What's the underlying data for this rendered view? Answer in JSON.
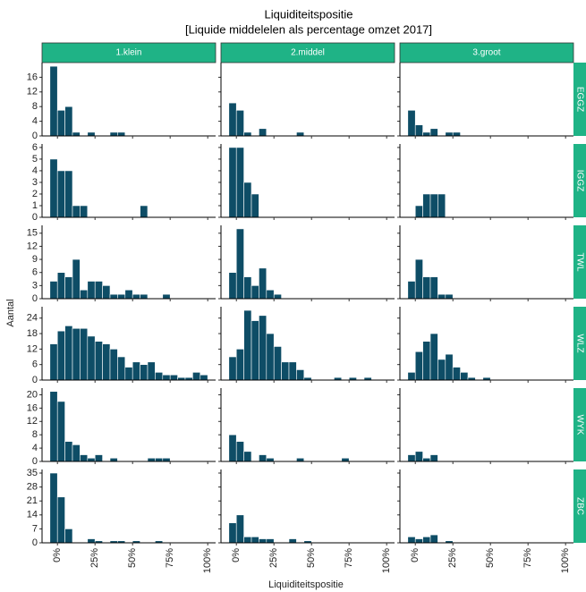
{
  "chart_data": {
    "type": "histogram",
    "title": "Liquiditeitspositie",
    "subtitle": "[Liquide middelelen als percentage omzet 2017]",
    "x_label": "Liquiditeitspositie",
    "y_label": "Aantal",
    "color": "#0e4d66",
    "strip_color": "#1fb386",
    "bins": [
      -5,
      0,
      5,
      10,
      15,
      20,
      25,
      30,
      35,
      40,
      45,
      50,
      55,
      60,
      65,
      70,
      75,
      80,
      85,
      90,
      95,
      100
    ],
    "xlim": [
      -10.25,
      105.25
    ],
    "xticks": [
      {
        "value": 0,
        "label": "0%"
      },
      {
        "value": 25,
        "label": "25%"
      },
      {
        "value": 50,
        "label": "50%"
      },
      {
        "value": 75,
        "label": "75%"
      },
      {
        "value": 100,
        "label": "100%"
      }
    ],
    "columns": [
      "1.klein",
      "2.middel",
      "3.groot"
    ],
    "rows": [
      {
        "name": "EGGZ",
        "ylim": [
          0,
          20
        ],
        "yticks": [
          0,
          4,
          8,
          12,
          16
        ],
        "panels": [
          [
            19,
            7,
            8,
            1,
            0,
            1,
            0,
            0,
            1,
            1,
            0,
            0,
            0,
            0,
            0,
            0,
            0,
            0,
            0,
            0,
            0
          ],
          [
            9,
            7,
            1,
            0,
            2,
            0,
            0,
            0,
            0,
            1,
            0,
            0,
            0,
            0,
            0,
            0,
            0,
            0,
            0,
            0,
            0
          ],
          [
            7,
            3,
            1,
            2,
            0,
            1,
            1,
            0,
            0,
            0,
            0,
            0,
            0,
            0,
            0,
            0,
            0,
            0,
            0,
            0,
            0
          ]
        ]
      },
      {
        "name": "IGGZ",
        "ylim": [
          0,
          6.3
        ],
        "yticks": [
          0,
          1,
          2,
          3,
          4,
          5,
          6
        ],
        "panels": [
          [
            5,
            4,
            4,
            1,
            1,
            0,
            0,
            0,
            0,
            0,
            0,
            0,
            1,
            0,
            0,
            0,
            0,
            0,
            0,
            0,
            0
          ],
          [
            6,
            6,
            3,
            2,
            0,
            0,
            0,
            0,
            0,
            0,
            0,
            0,
            0,
            0,
            0,
            0,
            0,
            0,
            0,
            0,
            0
          ],
          [
            0,
            1,
            2,
            2,
            2,
            0,
            0,
            0,
            0,
            0,
            0,
            0,
            0,
            0,
            0,
            0,
            0,
            0,
            0,
            0,
            0
          ]
        ]
      },
      {
        "name": "TWL",
        "ylim": [
          0,
          16.8
        ],
        "yticks": [
          0,
          3,
          6,
          9,
          12,
          15
        ],
        "panels": [
          [
            4,
            6,
            5,
            9,
            2,
            4,
            4,
            3,
            1,
            1,
            2,
            1,
            1,
            0,
            0,
            1,
            0,
            0,
            0,
            0,
            0
          ],
          [
            6,
            16,
            5,
            3,
            7,
            2,
            1,
            0,
            0,
            0,
            0,
            0,
            0,
            0,
            0,
            0,
            0,
            0,
            0,
            0,
            0
          ],
          [
            4,
            9,
            5,
            5,
            1,
            1,
            0,
            0,
            0,
            0,
            0,
            0,
            0,
            0,
            0,
            0,
            0,
            0,
            0,
            0,
            0
          ]
        ]
      },
      {
        "name": "WLZ",
        "ylim": [
          0,
          28.4
        ],
        "yticks": [
          0,
          6,
          12,
          18,
          24
        ],
        "panels": [
          [
            14,
            19,
            21,
            20,
            20,
            17,
            15,
            14,
            12,
            9,
            5,
            7,
            6,
            7,
            3,
            2,
            2,
            1,
            1,
            3,
            2
          ],
          [
            9,
            12,
            27,
            23,
            25,
            18,
            13,
            7,
            7,
            4,
            1,
            0,
            0,
            0,
            1,
            0,
            1,
            0,
            1,
            0,
            0
          ],
          [
            3,
            11,
            15,
            18,
            8,
            10,
            5,
            3,
            1,
            0,
            1,
            0,
            0,
            0,
            0,
            0,
            0,
            0,
            0,
            0,
            0
          ]
        ]
      },
      {
        "name": "WYK",
        "ylim": [
          0,
          22
        ],
        "yticks": [
          0,
          4,
          8,
          12,
          16,
          20
        ],
        "panels": [
          [
            21,
            18,
            6,
            5,
            2,
            1,
            2,
            0,
            1,
            0,
            0,
            0,
            0,
            1,
            1,
            1,
            0,
            0,
            0,
            0,
            0
          ],
          [
            8,
            6,
            3,
            0,
            2,
            1,
            0,
            0,
            0,
            1,
            0,
            0,
            0,
            0,
            0,
            1,
            0,
            0,
            0,
            0,
            0
          ],
          [
            2,
            3,
            1,
            2,
            0,
            0,
            0,
            0,
            0,
            0,
            0,
            0,
            0,
            0,
            0,
            0,
            0,
            0,
            0,
            0,
            0
          ]
        ]
      },
      {
        "name": "ZBC",
        "ylim": [
          0,
          36.8
        ],
        "yticks": [
          0,
          7,
          14,
          21,
          28,
          35
        ],
        "panels": [
          [
            35,
            23,
            7,
            0,
            0,
            2,
            1,
            0,
            1,
            1,
            0,
            1,
            0,
            0,
            1,
            0,
            0,
            0,
            0,
            0,
            0
          ],
          [
            10,
            14,
            3,
            3,
            2,
            2,
            0,
            0,
            2,
            0,
            1,
            0,
            0,
            0,
            0,
            0,
            0,
            0,
            0,
            0,
            0
          ],
          [
            3,
            2,
            3,
            4,
            0,
            1,
            0,
            0,
            0,
            0,
            0,
            0,
            0,
            0,
            0,
            0,
            0,
            0,
            0,
            0,
            0
          ]
        ]
      }
    ]
  }
}
